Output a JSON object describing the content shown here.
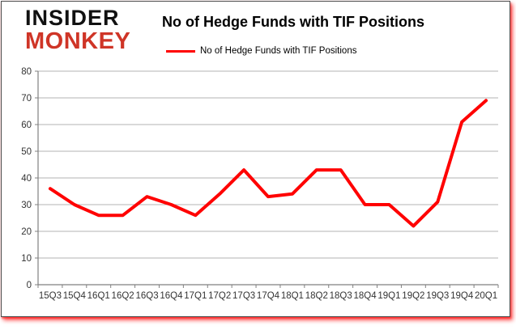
{
  "logo": {
    "line1": "INSIDER",
    "line2": "MONKEY"
  },
  "header": {
    "title": "No of Hedge Funds with TIF Positions"
  },
  "legend": {
    "label": "No of Hedge Funds with TIF Positions",
    "swatch_color": "#ff0000"
  },
  "colors": {
    "line": "#ff0000",
    "grid": "#b3b3b3",
    "axis": "#808080",
    "tick_text": "#333333",
    "card_border": "#4a4a4a",
    "card_shadow": "#ff0000",
    "logo_black": "#111111",
    "logo_red": "#cf3527"
  },
  "chart_data": {
    "type": "line",
    "title": "No of Hedge Funds with TIF Positions",
    "categories": [
      "15Q3",
      "15Q4",
      "16Q1",
      "16Q2",
      "16Q3",
      "16Q4",
      "17Q1",
      "17Q2",
      "17Q3",
      "17Q4",
      "18Q1",
      "18Q2",
      "18Q3",
      "18Q4",
      "19Q1",
      "19Q2",
      "19Q3",
      "19Q4",
      "20Q1"
    ],
    "series": [
      {
        "name": "No of Hedge Funds with TIF Positions",
        "color": "#ff0000",
        "values": [
          36,
          30,
          26,
          26,
          33,
          30,
          26,
          34,
          43,
          33,
          34,
          43,
          43,
          30,
          30,
          22,
          31,
          61,
          69
        ]
      }
    ],
    "xlabel": "",
    "ylabel": "",
    "ylim": [
      0,
      80
    ],
    "ytick_step": 10,
    "grid": true,
    "legend_position": "top"
  }
}
